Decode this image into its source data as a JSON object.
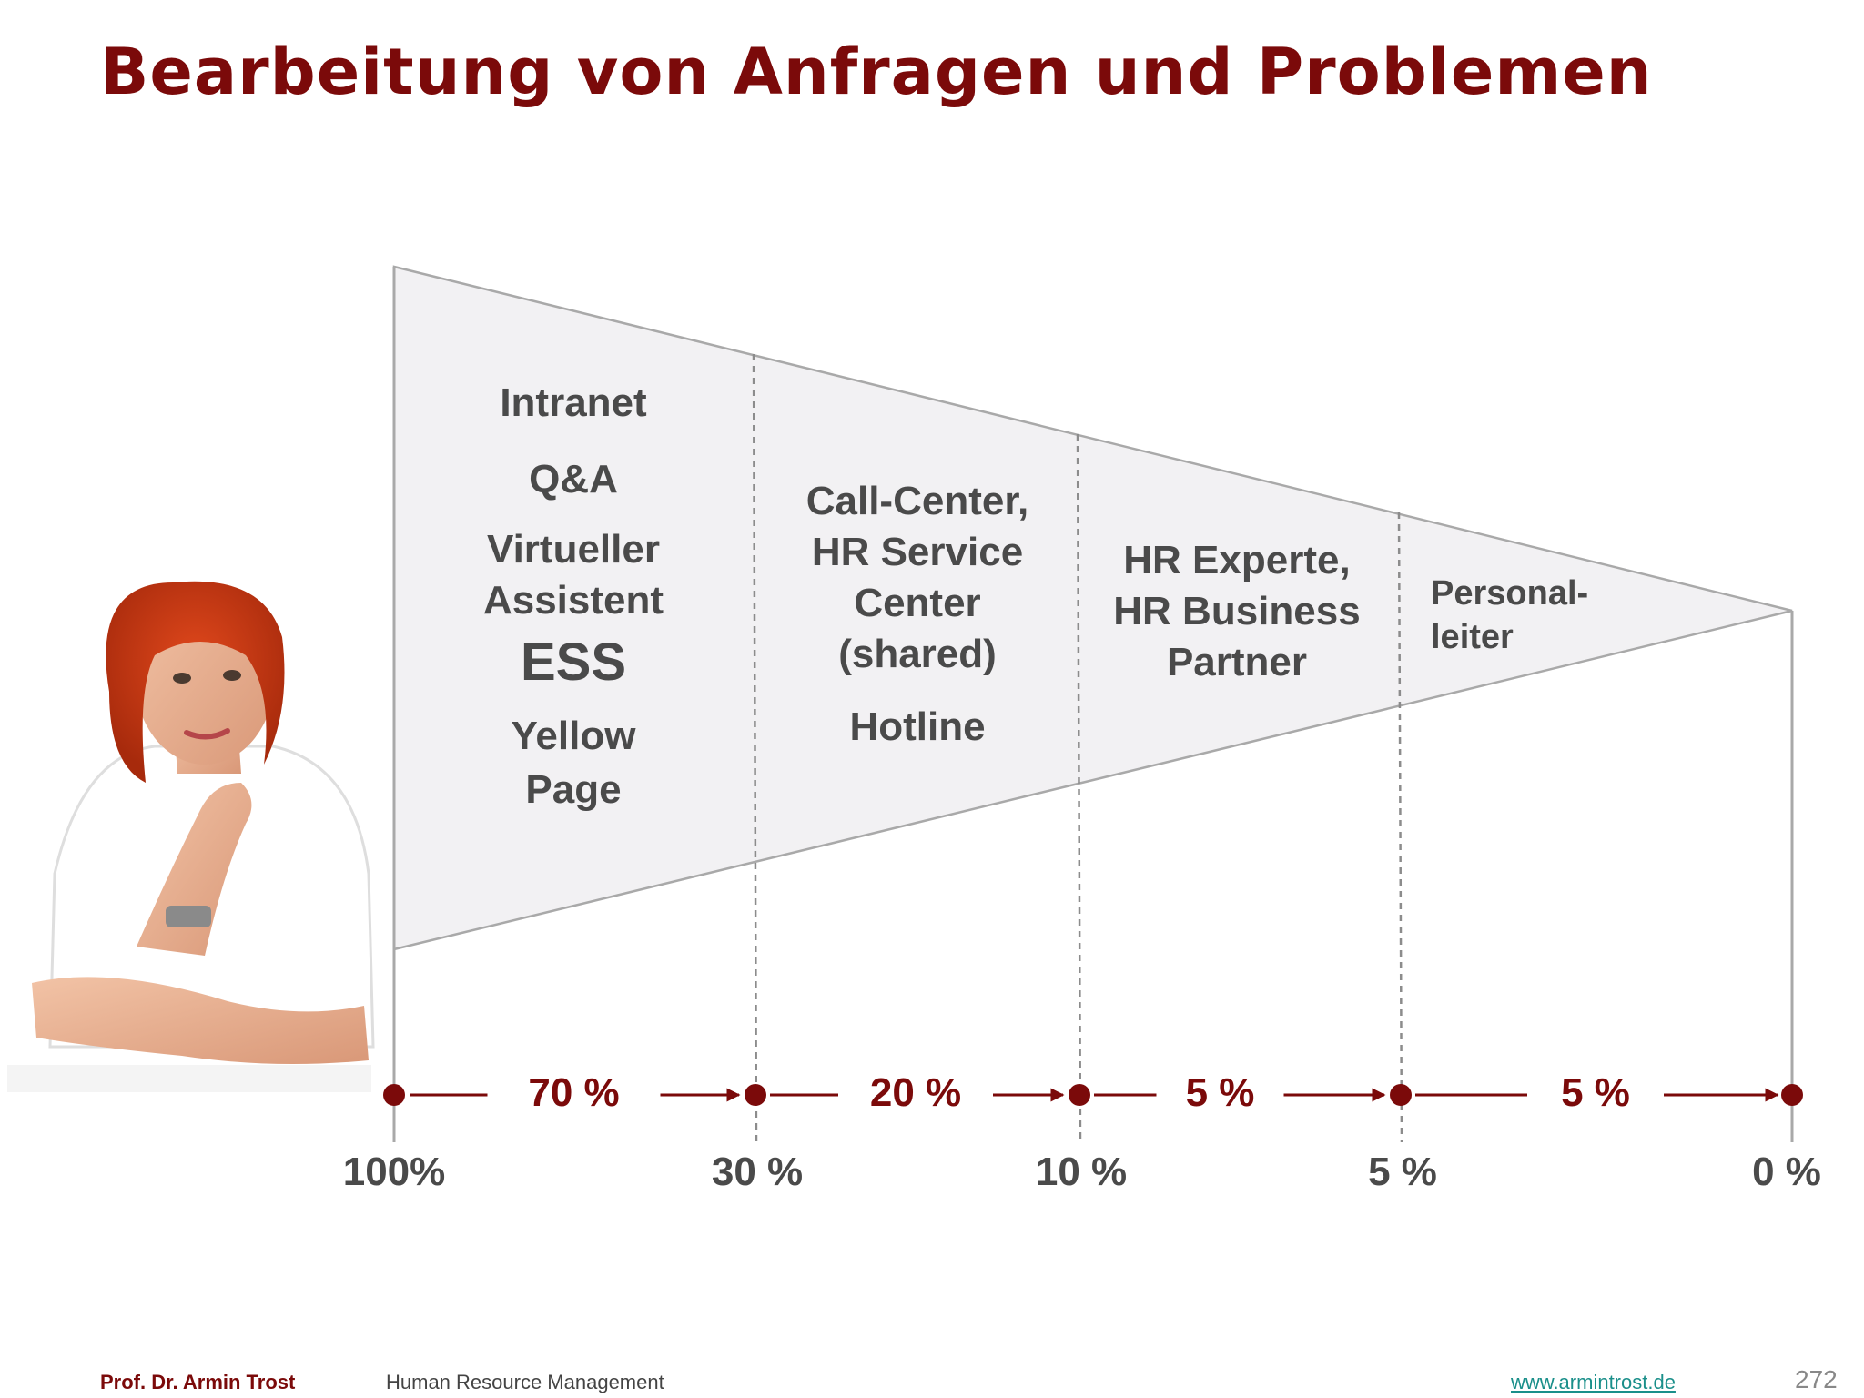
{
  "slide": {
    "title": "Bearbeitung von Anfragen und Problemen"
  },
  "zones": [
    {
      "lines": [
        "Intranet",
        "Q&A",
        "Virtueller",
        "Assistent",
        "ESS",
        "Yellow",
        "Page"
      ]
    },
    {
      "lines": [
        "Call-Center,",
        "HR Service",
        "Center",
        "(shared)",
        "Hotline"
      ]
    },
    {
      "lines": [
        "HR Experte,",
        "HR Business",
        "Partner"
      ]
    },
    {
      "lines": [
        "Personal-",
        "leiter"
      ]
    }
  ],
  "flow": {
    "stages": [
      {
        "share": 70,
        "label": "70 %"
      },
      {
        "share": 20,
        "label": "20 %"
      },
      {
        "share": 5,
        "label": "5 %"
      },
      {
        "share": 5,
        "label": "5 %"
      }
    ],
    "remaining": [
      {
        "value": 100,
        "label": "100%"
      },
      {
        "value": 30,
        "label": "30 %"
      },
      {
        "value": 10,
        "label": "10 %"
      },
      {
        "value": 5,
        "label": "5 %"
      },
      {
        "value": 0,
        "label": "0 %"
      }
    ]
  },
  "colors": {
    "accent": "#7b0a0a",
    "funnel_fill": "#f2f1f3",
    "funnel_stroke": "#a9a9a9",
    "text_gray": "#4a4a4a"
  },
  "illustration": {
    "icon": "thinking-woman-illustration"
  },
  "footer": {
    "author": "Prof. Dr. Armin Trost",
    "topic": "Human Resource Management",
    "link": "www.armintrost.de",
    "page": "272"
  }
}
